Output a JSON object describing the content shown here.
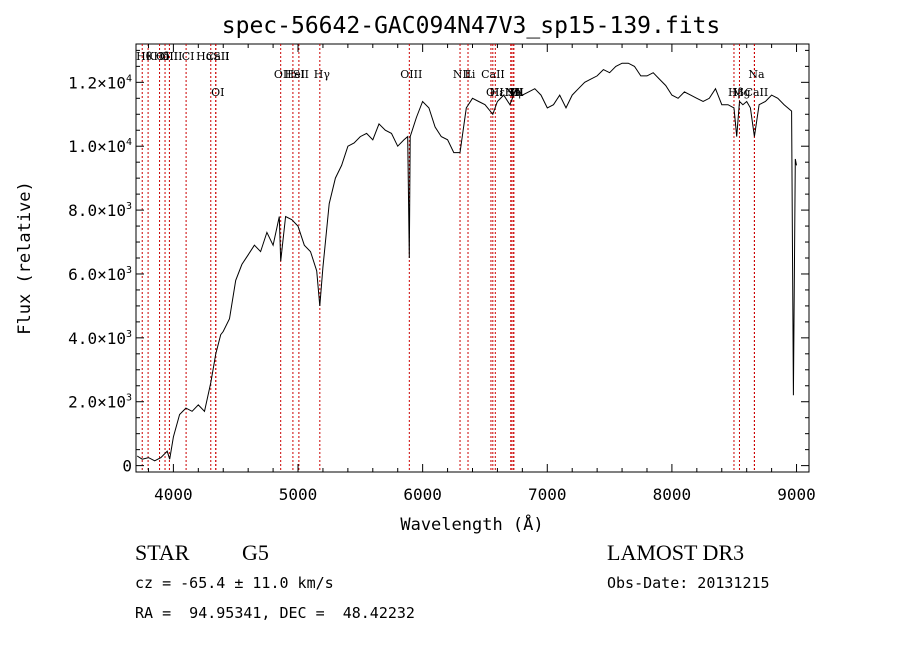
{
  "chart_data": {
    "type": "line",
    "title": "spec-56642-GAC094N47V3_sp15-139.fits",
    "xlabel": "Wavelength (Å)",
    "ylabel": "Flux (relative)",
    "xlim": [
      3700,
      9100
    ],
    "ylim": [
      -200,
      13200
    ],
    "x_ticks": [
      4000,
      5000,
      6000,
      7000,
      8000,
      9000
    ],
    "x_tick_labels": [
      "4000",
      "5000",
      "6000",
      "7000",
      "8000",
      "9000"
    ],
    "y_ticks": [
      0,
      2000,
      4000,
      6000,
      8000,
      10000,
      12000
    ],
    "y_tick_labels": [
      {
        "mant": "0",
        "exp": ""
      },
      {
        "mant": "2.0×10",
        "exp": "3"
      },
      {
        "mant": "4.0×10",
        "exp": "3"
      },
      {
        "mant": "6.0×10",
        "exp": "3"
      },
      {
        "mant": "8.0×10",
        "exp": "3"
      },
      {
        "mant": "1.0×10",
        "exp": "4"
      },
      {
        "mant": "1.2×10",
        "exp": "4"
      }
    ],
    "series": [
      {
        "color": "#000000",
        "x": [
          3710,
          3750,
          3800,
          3850,
          3900,
          3950,
          3970,
          4000,
          4050,
          4100,
          4150,
          4200,
          4250,
          4300,
          4340,
          4380,
          4400,
          4450,
          4500,
          4550,
          4600,
          4650,
          4700,
          4750,
          4800,
          4850,
          4861,
          4900,
          4950,
          5000,
          5050,
          5100,
          5150,
          5175,
          5200,
          5250,
          5300,
          5350,
          5400,
          5450,
          5500,
          5550,
          5600,
          5650,
          5700,
          5750,
          5800,
          5850,
          5880,
          5893,
          5900,
          5950,
          6000,
          6050,
          6100,
          6150,
          6200,
          6250,
          6300,
          6350,
          6400,
          6450,
          6500,
          6563,
          6600,
          6650,
          6700,
          6750,
          6800,
          6850,
          6900,
          6950,
          7000,
          7050,
          7100,
          7150,
          7200,
          7250,
          7300,
          7350,
          7400,
          7450,
          7500,
          7550,
          7600,
          7650,
          7700,
          7750,
          7800,
          7850,
          7900,
          7950,
          8000,
          8050,
          8100,
          8150,
          8200,
          8250,
          8300,
          8350,
          8400,
          8450,
          8498,
          8520,
          8542,
          8570,
          8600,
          8630,
          8662,
          8700,
          8750,
          8800,
          8850,
          8900,
          8960,
          8975,
          8990,
          9000
        ],
        "y": [
          300,
          200,
          250,
          150,
          250,
          450,
          200,
          900,
          1600,
          1800,
          1700,
          1900,
          1700,
          2600,
          3500,
          4100,
          4200,
          4600,
          5800,
          6300,
          6600,
          6900,
          6700,
          7300,
          6900,
          7800,
          6400,
          7800,
          7700,
          7500,
          6900,
          6700,
          6100,
          5000,
          6200,
          8200,
          9000,
          9400,
          10000,
          10100,
          10300,
          10400,
          10200,
          10700,
          10500,
          10400,
          10000,
          10200,
          10300,
          6500,
          10300,
          10900,
          11400,
          11200,
          10600,
          10300,
          10200,
          9800,
          9800,
          11200,
          11500,
          11400,
          11300,
          11000,
          11400,
          11600,
          11300,
          11800,
          11600,
          11700,
          11800,
          11600,
          11200,
          11300,
          11600,
          11200,
          11600,
          11800,
          12000,
          12100,
          12200,
          12400,
          12300,
          12500,
          12600,
          12600,
          12500,
          12200,
          12200,
          12300,
          12100,
          11900,
          11600,
          11500,
          11700,
          11600,
          11500,
          11400,
          11500,
          11800,
          11300,
          11300,
          11200,
          10300,
          11400,
          11300,
          11400,
          11200,
          10300,
          11300,
          11400,
          11600,
          11500,
          11300,
          11100,
          2200,
          9600,
          9400
        ]
      }
    ],
    "lines": [
      {
        "x": 3750,
        "label": "Hθ",
        "row": 0
      },
      {
        "x": 3797,
        "label": "K",
        "row": 0
      },
      {
        "x": 3889,
        "label": "Hδ",
        "row": 0
      },
      {
        "x": 3933,
        "label": "OIII",
        "row": 0
      },
      {
        "x": 3968,
        "label": "OIII",
        "row": 0
      },
      {
        "x": 4102,
        "label": "CI",
        "row": 0
      },
      {
        "x": 4300,
        "label": "HαSII",
        "row": 0
      },
      {
        "x": 4340,
        "label": "CaII",
        "row": 0
      },
      {
        "x": 4861,
        "label": "OII",
        "row": 1
      },
      {
        "x": 4959,
        "label": "HeI",
        "row": 1
      },
      {
        "x": 5007,
        "label": "SII",
        "row": 1
      },
      {
        "x": 5175,
        "label": "Hγ",
        "row": 1
      },
      {
        "x": 5893,
        "label": "OIII",
        "row": 1
      },
      {
        "x": 6300,
        "label": "NII",
        "row": 1
      },
      {
        "x": 6364,
        "label": "Li",
        "row": 1
      },
      {
        "x": 6548,
        "label": "CaII",
        "row": 1
      },
      {
        "x": 6563,
        "label": "OII",
        "row": 2
      },
      {
        "x": 6583,
        "label": "Hε",
        "row": 2
      },
      {
        "x": 6707,
        "label": "Hη",
        "row": 2
      },
      {
        "x": 6717,
        "label": "H",
        "row": 2
      },
      {
        "x": 6731,
        "label": "G",
        "row": 2
      },
      {
        "x": 8498,
        "label": "Hβ",
        "row": 2
      },
      {
        "x": 8542,
        "label": "Mg",
        "row": 2
      },
      {
        "x": 8662,
        "label": "Na",
        "row": 1
      },
      {
        "x": 4340,
        "label": "OI",
        "row": 2
      },
      {
        "x": 6717,
        "label": "NII",
        "row": 2
      },
      {
        "x": 6731,
        "label": "SII",
        "row": 2
      },
      {
        "x": 8662,
        "label": "CaII",
        "row": 2
      }
    ]
  },
  "info": {
    "object_type": "STAR",
    "subclass": "G5",
    "survey": "LAMOST DR3",
    "redshift_text": "cz = -65.4 ± 11.0 km/s",
    "obs_date_text": "Obs-Date: 20131215",
    "coords_text": "RA =  94.95341, DEC =  48.42232"
  }
}
